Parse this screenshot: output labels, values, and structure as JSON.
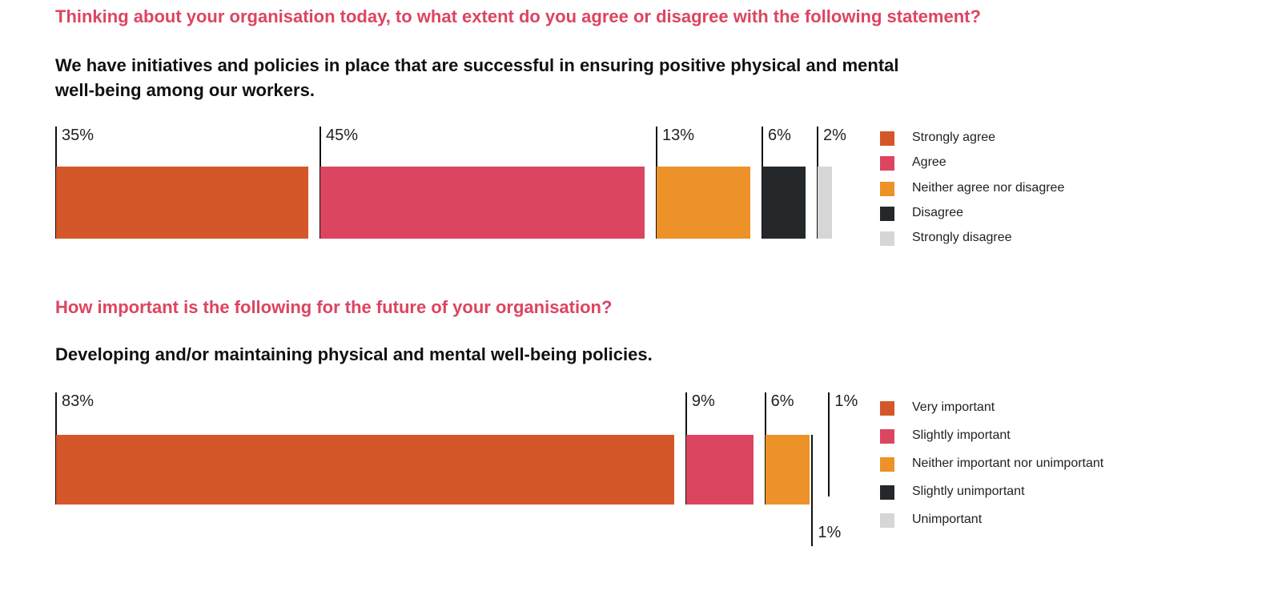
{
  "chart_data": [
    {
      "type": "bar",
      "orientation": "horizontal-stacked",
      "title": "Thinking about your organisation today, to what extent do you agree or disagree with the following statement?",
      "subtitle": "We have initiatives and policies in place that are successful in ensuring positive physical and mental well-being among our workers.",
      "categories": [
        "Strongly agree",
        "Agree",
        "Neither agree nor disagree",
        "Disagree",
        "Strongly disagree"
      ],
      "values": [
        35,
        45,
        13,
        6,
        2
      ],
      "labels": [
        "35%",
        "45%",
        "13%",
        "6%",
        "2%"
      ],
      "colors": [
        "#d4572a",
        "#dc4560",
        "#ec9228",
        "#25282b",
        "#d6d6d6"
      ],
      "legend": "right"
    },
    {
      "type": "bar",
      "orientation": "horizontal-stacked",
      "title": "How important is the following for the future of your organisation?",
      "subtitle": "Developing and/or maintaining physical and mental well-being policies.",
      "categories": [
        "Very important",
        "Slightly important",
        "Neither important nor unimportant",
        "Slightly unimportant",
        "Unimportant"
      ],
      "values": [
        83,
        9,
        6,
        1,
        1
      ],
      "labels": [
        "83%",
        "9%",
        "6%",
        "1%",
        "1%"
      ],
      "colors": [
        "#d4572a",
        "#dc4560",
        "#ec9228",
        "#25282b",
        "#d6d6d6"
      ],
      "legend": "right"
    }
  ]
}
